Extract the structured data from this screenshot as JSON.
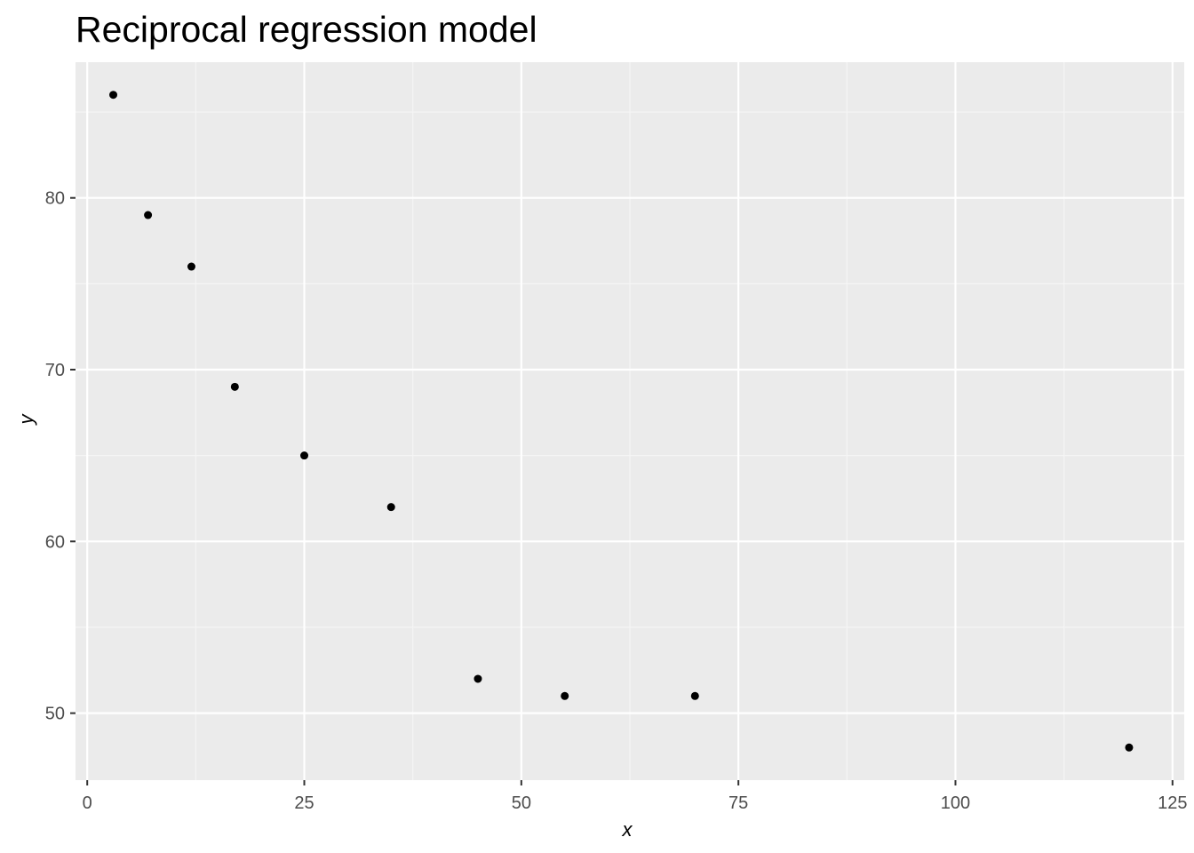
{
  "chart_data": {
    "type": "scatter",
    "title": "Reciprocal regression model",
    "xlabel": "x",
    "ylabel": "y",
    "xlim": [
      -1.35,
      126.35
    ],
    "ylim": [
      46.1,
      87.9
    ],
    "x_ticks": [
      0,
      25,
      50,
      75,
      100,
      125
    ],
    "x_tick_labels": [
      "0",
      "25",
      "50",
      "75",
      "100",
      "125"
    ],
    "y_ticks": [
      50,
      60,
      70,
      80
    ],
    "y_tick_labels": [
      "50",
      "60",
      "70",
      "80"
    ],
    "grid": true,
    "x": [
      3,
      7,
      12,
      17,
      25,
      35,
      45,
      55,
      70,
      120
    ],
    "y": [
      86,
      79,
      76,
      69,
      65,
      62,
      52,
      51,
      51,
      48
    ],
    "colors": {
      "panel_background": "#ebebeb",
      "grid_major": "#ffffff",
      "grid_minor": "#f5f5f5",
      "point": "#000000",
      "tick": "#333333"
    }
  }
}
